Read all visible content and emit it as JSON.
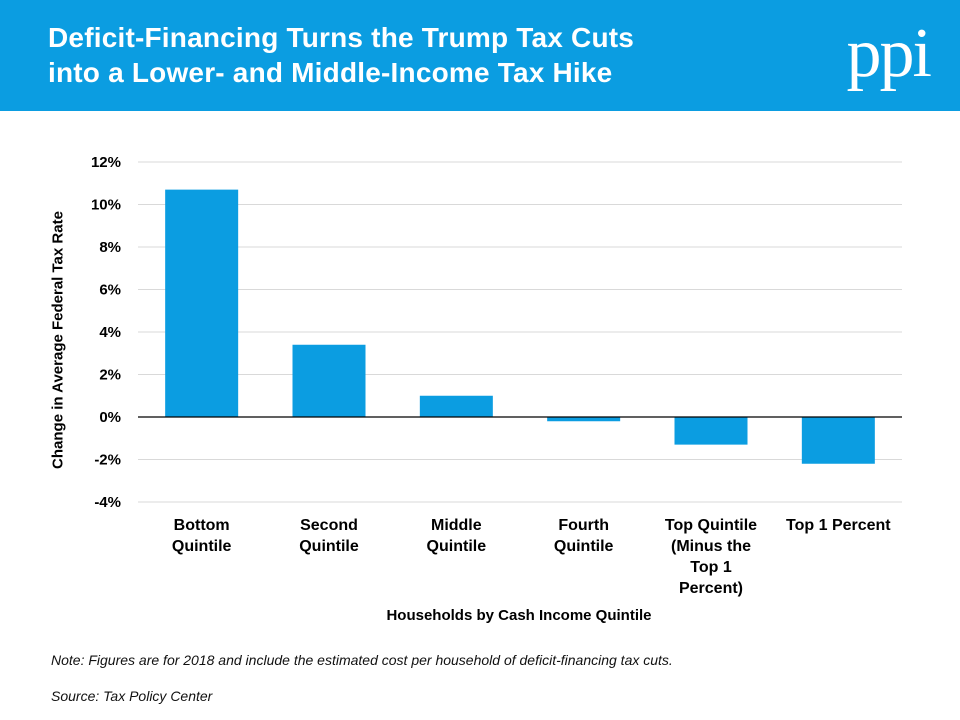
{
  "header": {
    "title_line1": "Deficit-Financing Turns the Trump Tax Cuts",
    "title_line2": "into a Lower- and Middle-Income Tax Hike",
    "logo": "ppi",
    "background": "#0b9de1"
  },
  "chart_data": {
    "type": "bar",
    "categories": [
      [
        "Bottom",
        "Quintile"
      ],
      [
        "Second",
        "Quintile"
      ],
      [
        "Middle",
        "Quintile"
      ],
      [
        "Fourth",
        "Quintile"
      ],
      [
        "Top Quintile",
        "(Minus the",
        "Top 1",
        "Percent)"
      ],
      [
        "Top 1 Percent"
      ]
    ],
    "values": [
      10.7,
      3.4,
      1.0,
      -0.2,
      -1.3,
      -2.2
    ],
    "ylabel": "Change in Average Federal Tax Rate",
    "xlabel": "Households by Cash Income Quintile",
    "ylim": [
      -4,
      12
    ],
    "yticks": [
      12,
      10,
      8,
      6,
      4,
      2,
      0,
      -2,
      -4
    ],
    "ytick_labels": [
      "12%",
      "10%",
      "8%",
      "6%",
      "4%",
      "2%",
      "0%",
      "-2%",
      "-4%"
    ],
    "grid": true,
    "bar_color": "#0b9de1"
  },
  "footer": {
    "note": "Note: Figures are for 2018 and include the estimated cost per household of deficit-financing tax cuts.",
    "source": "Source: Tax Policy Center"
  }
}
